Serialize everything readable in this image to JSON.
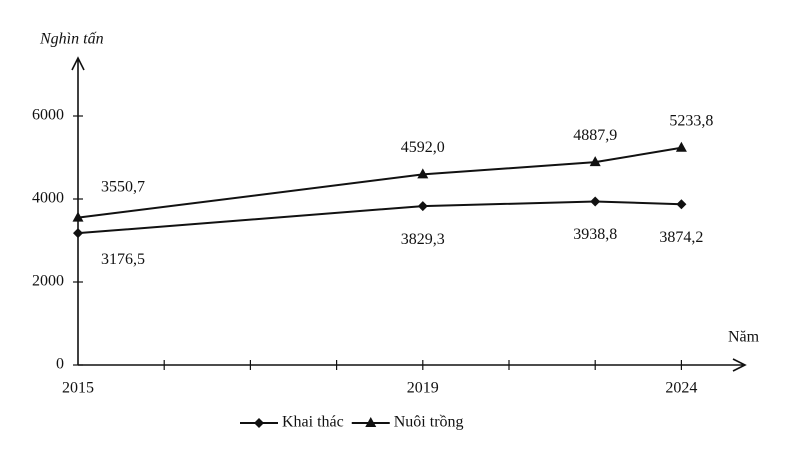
{
  "chart_data": {
    "type": "line",
    "y_label": "Nghìn tấn",
    "x_label": "Năm",
    "categories": [
      "2015",
      "2019",
      null,
      "2024"
    ],
    "series": [
      {
        "name": "Khai thác",
        "color": "#111111",
        "marker": "diamond",
        "values": [
          3176.5,
          3829.3,
          3938.8,
          3874.2
        ],
        "value_labels": [
          "3176,5",
          "3829,3",
          "3938,8",
          "3874,2"
        ]
      },
      {
        "name": "Nuôi trồng",
        "color": "#111111",
        "marker": "triangle",
        "values": [
          3550.7,
          4592.0,
          4887.9,
          5233.8
        ],
        "value_labels": [
          "3550,7",
          "4592,0",
          "4887,9",
          "5233,8"
        ]
      }
    ],
    "ylim": [
      0,
      7000
    ],
    "yticks": [
      0,
      2000,
      4000,
      6000
    ],
    "grid": false,
    "legend": "bottom"
  }
}
